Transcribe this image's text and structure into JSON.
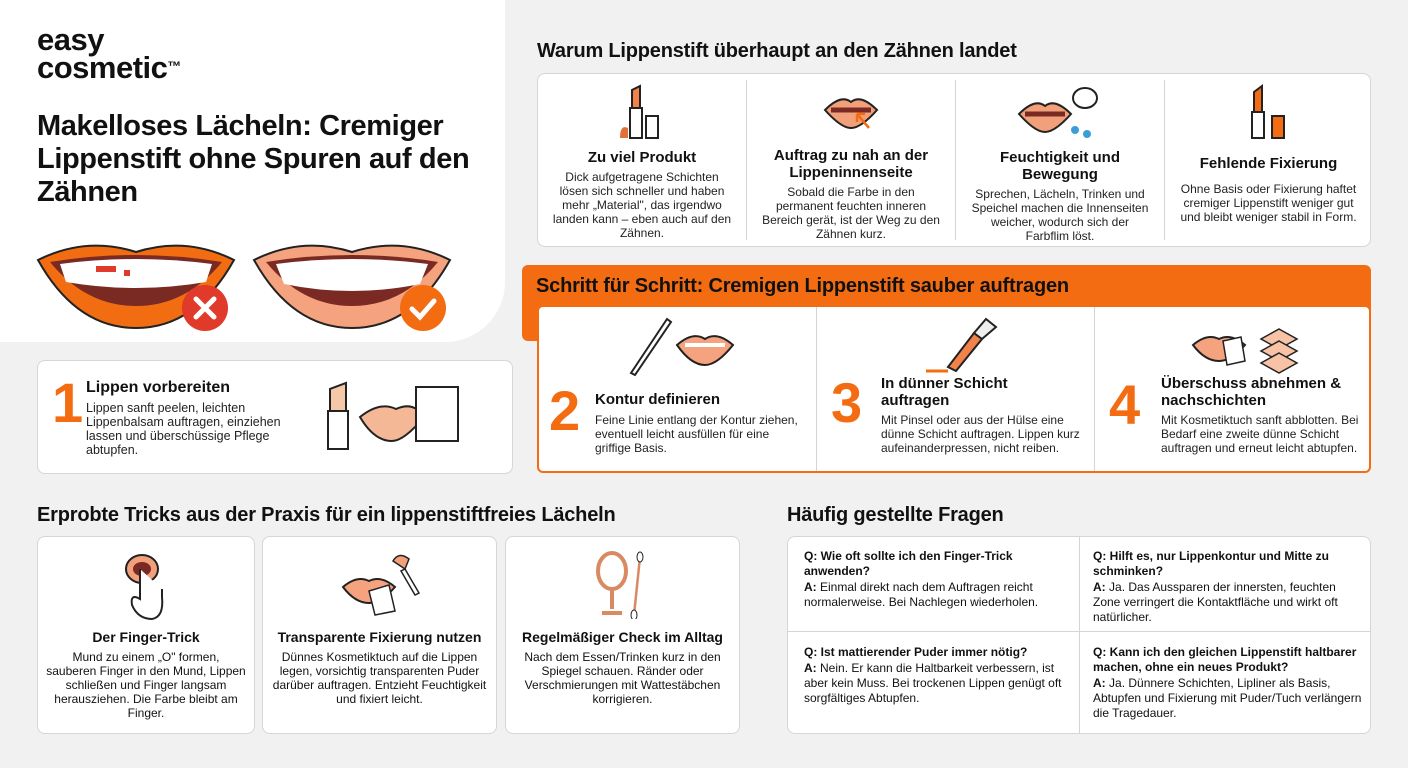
{
  "brand": {
    "line1": "easy",
    "line2": "cosmetic",
    "tm": "™"
  },
  "hero": {
    "title": "Makelloses Lächeln: Cremiger Lippenstift ohne Spuren auf den Zähnen",
    "bad_icon": "x-circle-icon",
    "good_icon": "check-circle-icon"
  },
  "colors": {
    "accent": "#f36c12",
    "bad": "#e03a2a",
    "lip": "#f5a27e"
  },
  "why": {
    "heading": "Warum Lippenstift überhaupt an den Zähnen landet",
    "items": [
      {
        "title": "Zu viel Produkt",
        "text": "Dick aufgetragene Schichten lösen sich schneller und haben mehr „Material\", das irgendwo landen kann – eben auch auf den Zähnen.",
        "icon": "lipstick-icon"
      },
      {
        "title": "Auftrag zu nah an der Lippeninnenseite",
        "text": "Sobald die Farbe in den permanent feuchten inneren Bereich gerät, ist der Weg zu den Zähnen kurz.",
        "icon": "lips-arrow-icon"
      },
      {
        "title": "Feuchtigkeit und Bewegung",
        "text": "Sprechen, Lächeln, Trinken und Speichel machen die Innenseiten weicher, wodurch sich der Farbflim löst.",
        "icon": "lips-speech-icon"
      },
      {
        "title": "Fehlende Fixierung",
        "text": "Ohne Basis oder Fixierung haftet cremiger Lippenstift weniger gut und bleibt weniger stabil in Form.",
        "icon": "lipstick-open-icon"
      }
    ]
  },
  "steps": {
    "heading": "Schritt für Schritt: Cremigen Lippenstift sauber auftragen",
    "items": [
      {
        "num": "1",
        "title": "Lippen vorbereiten",
        "text": "Lippen sanft peelen, leichten Lippenbalsam auftragen, einziehen lassen und überschüssige Pflege abtupfen."
      },
      {
        "num": "2",
        "title": "Kontur definieren",
        "text": "Feine Linie entlang der Kontur ziehen, eventuell leicht ausfüllen für eine griffige Basis."
      },
      {
        "num": "3",
        "title": "In dünner Schicht auftragen",
        "text": "Mit Pinsel oder aus der Hülse eine dünne Schicht auftragen. Lippen kurz aufeinanderpressen, nicht reiben."
      },
      {
        "num": "4",
        "title": "Überschuss abnehmen & nachschichten",
        "text": "Mit Kosmetiktuch sanft abblotten. Bei Bedarf eine zweite dünne Schicht auftragen und erneut leicht abtupfen."
      }
    ]
  },
  "tricks": {
    "heading": "Erprobte Tricks aus der Praxis für ein lippenstiftfreies Lächeln",
    "items": [
      {
        "title": "Der Finger-Trick",
        "text": "Mund zu einem „O\" formen, sauberen Finger in den Mund, Lippen schließen und Finger langsam herausziehen. Die Farbe bleibt am Finger.",
        "icon": "finger-mouth-icon"
      },
      {
        "title": "Transparente Fixierung nutzen",
        "text": "Dünnes Kosmetiktuch auf die Lippen legen, vorsichtig transparenten Puder darüber auftragen. Entzieht Feuchtigkeit und fixiert leicht.",
        "icon": "powder-brush-icon"
      },
      {
        "title": "Regelmäßiger Check im Alltag",
        "text": "Nach dem Essen/Trinken kurz in den Spiegel schauen. Ränder oder Verschmierungen mit Wattestäbchen korrigieren.",
        "icon": "mirror-icon"
      }
    ]
  },
  "faq": {
    "heading": "Häufig gestellte Fragen",
    "items": [
      {
        "q": "Q: Wie oft sollte ich den Finger-Trick anwenden?",
        "a_label": "A:",
        "a": "Einmal direkt nach dem Auftragen reicht normalerweise. Bei Nachlegen wiederholen."
      },
      {
        "q": "Q: Hilft es, nur Lippenkontur und Mitte zu schminken?",
        "a_label": "A:",
        "a": "Ja. Das Aussparen der innersten, feuchten Zone verringert die Kontaktfläche und wirkt oft natürlicher."
      },
      {
        "q": "Q: Ist mattierender Puder immer nötig?",
        "a_label": "A:",
        "a": "Nein. Er kann die Haltbarkeit verbessern, ist aber kein Muss. Bei trockenen Lippen genügt oft sorgfältiges Abtupfen."
      },
      {
        "q": "Q: Kann ich den gleichen Lippenstift haltbarer machen, ohne ein neues Produkt?",
        "a_label": "A:",
        "a": "Ja. Dünnere Schichten, Lipliner als Basis, Abtupfen und Fixierung mit Puder/Tuch verlängern die Tragedauer."
      }
    ]
  }
}
